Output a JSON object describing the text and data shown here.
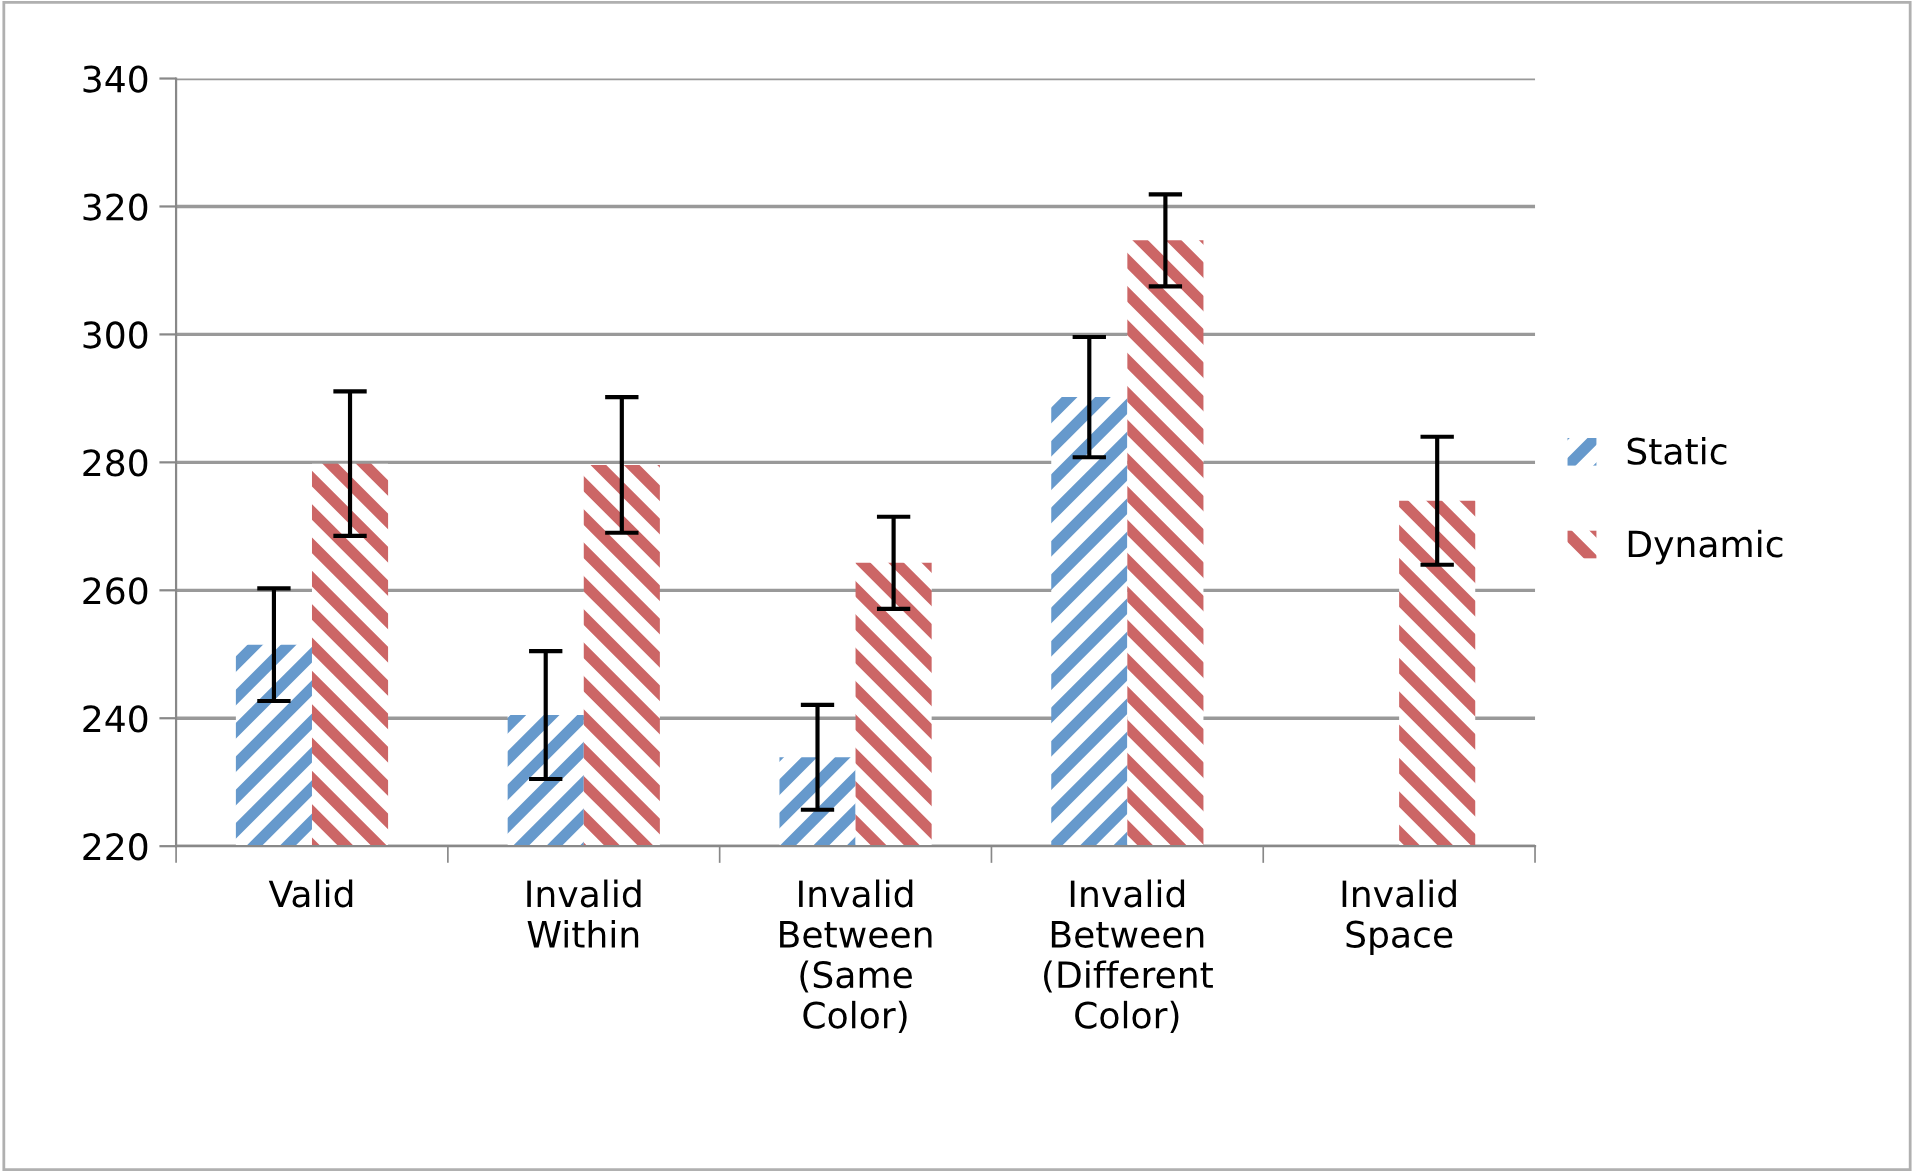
{
  "chart_data": {
    "type": "bar",
    "categories": [
      "Valid",
      "Invalid\nWithin",
      "Invalid\nBetween\n(Same\nColor)",
      "Invalid\nBetween\n(Different\nColor)",
      "Invalid\nSpace"
    ],
    "series": [
      {
        "name": "Static",
        "color": "#6699cc",
        "values": [
          251.5,
          240.5,
          233.9,
          290.2,
          null
        ],
        "errors": [
          8.8,
          10,
          8.2,
          9.4,
          null
        ]
      },
      {
        "name": "Dynamic",
        "color": "#cc6666",
        "values": [
          279.8,
          279.6,
          264.3,
          314.7,
          274
        ],
        "errors": [
          11.3,
          10.6,
          7.2,
          7.2,
          10
        ]
      }
    ],
    "ylim": [
      220,
      340
    ],
    "yticks": [
      220,
      240,
      260,
      280,
      300,
      320,
      340
    ],
    "grid": "y",
    "legend": "right"
  }
}
